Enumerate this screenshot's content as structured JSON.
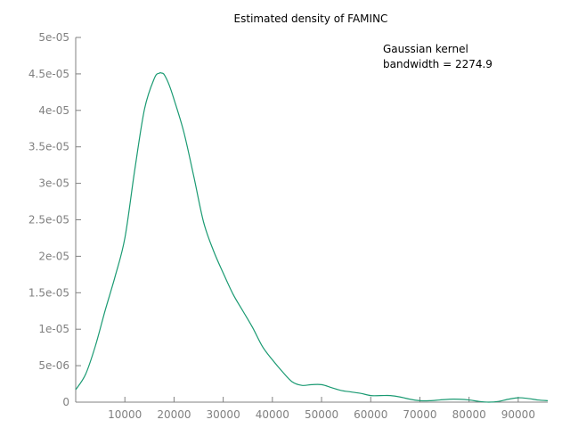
{
  "chart_data": {
    "type": "line",
    "title": "Estimated density of FAMINC",
    "xlabel": "",
    "ylabel": "",
    "xlim": [
      0,
      96000
    ],
    "ylim": [
      0,
      5e-05
    ],
    "x_ticks": [
      {
        "value": 10000,
        "label": "10000"
      },
      {
        "value": 20000,
        "label": "20000"
      },
      {
        "value": 30000,
        "label": "30000"
      },
      {
        "value": 40000,
        "label": "40000"
      },
      {
        "value": 50000,
        "label": "50000"
      },
      {
        "value": 60000,
        "label": "60000"
      },
      {
        "value": 70000,
        "label": "70000"
      },
      {
        "value": 80000,
        "label": "80000"
      },
      {
        "value": 90000,
        "label": "90000"
      }
    ],
    "y_ticks": [
      {
        "value": 0,
        "label": "0"
      },
      {
        "value": 5e-06,
        "label": "5e-06"
      },
      {
        "value": 1e-05,
        "label": "1e-05"
      },
      {
        "value": 1.5e-05,
        "label": "1.5e-05"
      },
      {
        "value": 2e-05,
        "label": "2e-05"
      },
      {
        "value": 2.5e-05,
        "label": "2.5e-05"
      },
      {
        "value": 3e-05,
        "label": "3e-05"
      },
      {
        "value": 3.5e-05,
        "label": "3.5e-05"
      },
      {
        "value": 4e-05,
        "label": "4e-05"
      },
      {
        "value": 4.5e-05,
        "label": "4.5e-05"
      },
      {
        "value": 5e-05,
        "label": "5e-05"
      }
    ],
    "grid": false,
    "annotation": {
      "line1": "Gaussian kernel",
      "line2": "bandwidth = 2274.9"
    },
    "series": [
      {
        "color": "#1a9a72",
        "x": [
          0,
          2000,
          4000,
          6000,
          8000,
          10000,
          12000,
          14000,
          16000,
          17000,
          17500,
          18000,
          19000,
          20000,
          22000,
          24000,
          26000,
          28000,
          30000,
          32000,
          34000,
          36000,
          38000,
          40000,
          42000,
          44000,
          46000,
          48000,
          50000,
          52000,
          54000,
          56000,
          58000,
          60000,
          62000,
          64000,
          66000,
          68000,
          70000,
          72000,
          74000,
          76000,
          78000,
          80000,
          82000,
          84000,
          86000,
          88000,
          90000,
          92000,
          94000,
          96000
        ],
        "y": [
          1.7e-06,
          3.8e-06,
          7.7e-06,
          1.26e-05,
          1.72e-05,
          2.25e-05,
          3.18e-05,
          4.02e-05,
          4.44e-05,
          4.51e-05,
          4.51e-05,
          4.49e-05,
          4.35e-05,
          4.15e-05,
          3.7e-05,
          3.1e-05,
          2.47e-05,
          2.08e-05,
          1.77e-05,
          1.48e-05,
          1.25e-05,
          1.02e-05,
          7.6e-06,
          5.8e-06,
          4.2e-06,
          2.8e-06,
          2.3e-06,
          2.4e-06,
          2.4e-06,
          2e-06,
          1.6e-06,
          1.4e-06,
          1.2e-06,
          9e-07,
          9e-07,
          9e-07,
          7e-07,
          4e-07,
          2e-07,
          2e-07,
          3e-07,
          4e-07,
          4e-07,
          3e-07,
          1e-07,
          0,
          1e-07,
          4e-07,
          6e-07,
          5e-07,
          3e-07,
          2e-07
        ]
      }
    ]
  }
}
